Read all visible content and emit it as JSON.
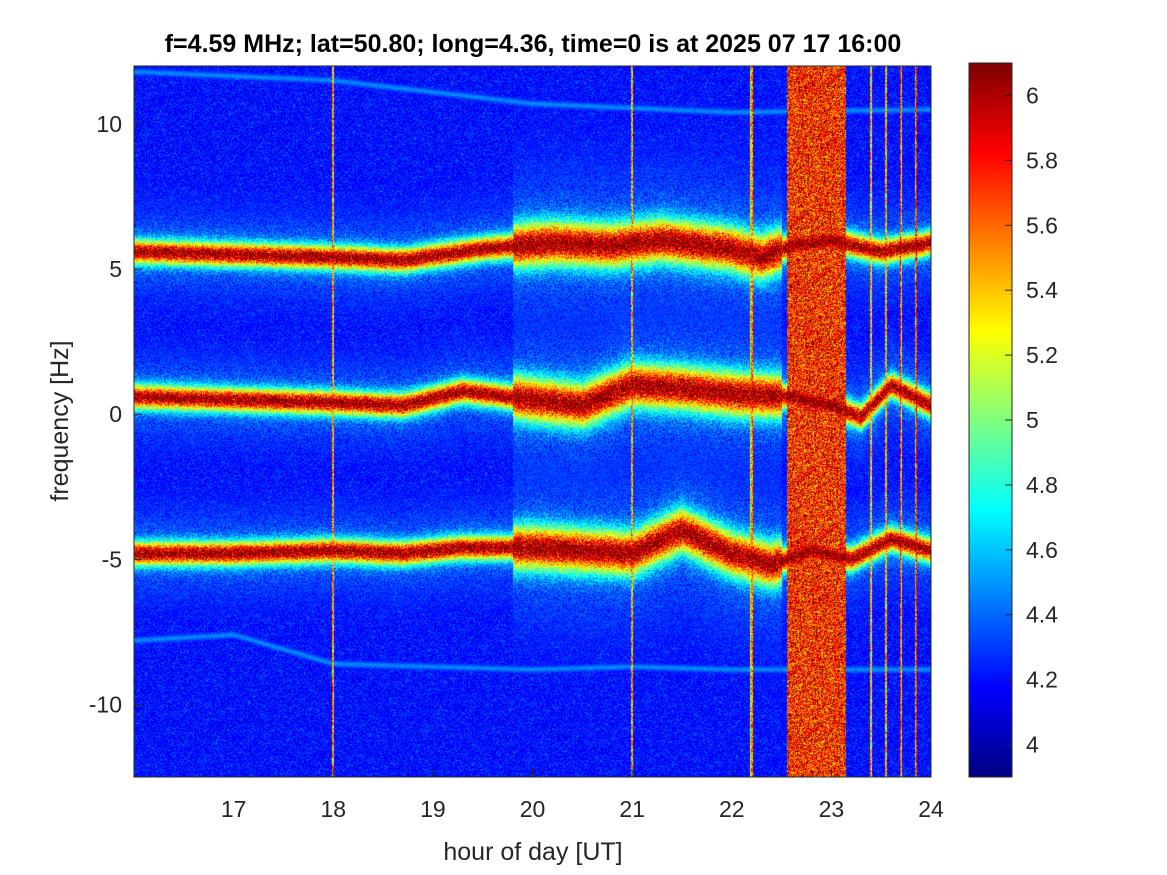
{
  "chart_data": {
    "type": "heatmap",
    "title": "f=4.59 MHz;  lat=50.80; long=4.36, time=0 is at 2025 07 17 16:00",
    "xlabel": "hour of day [UT]",
    "ylabel": "frequency [Hz]",
    "xlim": [
      16,
      24
    ],
    "ylim": [
      -12.5,
      12
    ],
    "x_ticks": [
      17,
      18,
      19,
      20,
      21,
      22,
      23,
      24
    ],
    "y_ticks": [
      -10,
      -5,
      0,
      5,
      10
    ],
    "y_tick_labels": [
      "-10",
      "-5",
      "0",
      "5",
      "10"
    ],
    "colorbar": {
      "colormap": "jet",
      "clim": [
        3.9,
        6.1
      ],
      "ticks": [
        4,
        4.2,
        4.4,
        4.6,
        4.8,
        5,
        5.2,
        5.4,
        5.6,
        5.8,
        6
      ],
      "tick_labels": [
        "4",
        "4.2",
        "4.4",
        "4.6",
        "4.8",
        "5",
        "5.2",
        "5.4",
        "5.6",
        "5.8",
        "6"
      ]
    },
    "background_level": 4.15,
    "traces": [
      {
        "center_hz": 5.6,
        "points": [
          [
            16,
            5.6
          ],
          [
            17,
            5.5
          ],
          [
            18,
            5.4
          ],
          [
            18.7,
            5.3
          ],
          [
            19.5,
            5.7
          ],
          [
            20.2,
            5.9
          ],
          [
            20.8,
            5.8
          ],
          [
            21.3,
            6.0
          ],
          [
            22.0,
            5.7
          ],
          [
            22.3,
            5.4
          ],
          [
            22.6,
            5.8
          ],
          [
            23.0,
            6.0
          ],
          [
            23.5,
            5.6
          ],
          [
            24,
            5.9
          ]
        ],
        "peak_level": 6.0
      },
      {
        "center_hz": 0.6,
        "points": [
          [
            16,
            0.6
          ],
          [
            17,
            0.5
          ],
          [
            18,
            0.4
          ],
          [
            18.7,
            0.3
          ],
          [
            19.3,
            0.8
          ],
          [
            20.0,
            0.5
          ],
          [
            20.5,
            0.3
          ],
          [
            21.0,
            1.0
          ],
          [
            21.5,
            0.9
          ],
          [
            22.0,
            0.7
          ],
          [
            22.6,
            0.6
          ],
          [
            23.0,
            0.3
          ],
          [
            23.3,
            -0.1
          ],
          [
            23.6,
            1.0
          ],
          [
            24,
            0.3
          ]
        ],
        "peak_level": 6.0
      },
      {
        "center_hz": -4.8,
        "points": [
          [
            16,
            -4.8
          ],
          [
            17,
            -4.8
          ],
          [
            18,
            -4.7
          ],
          [
            18.7,
            -4.8
          ],
          [
            19.3,
            -4.6
          ],
          [
            20.0,
            -4.6
          ],
          [
            20.5,
            -4.7
          ],
          [
            21.0,
            -4.8
          ],
          [
            21.5,
            -4.0
          ],
          [
            22.0,
            -4.8
          ],
          [
            22.4,
            -5.2
          ],
          [
            22.8,
            -4.7
          ],
          [
            23.2,
            -5.0
          ],
          [
            23.6,
            -4.3
          ],
          [
            24,
            -4.7
          ]
        ],
        "peak_level": 6.0
      },
      {
        "center_hz": 11.6,
        "points": [
          [
            16,
            11.8
          ],
          [
            18,
            11.5
          ],
          [
            20,
            10.7
          ],
          [
            22,
            10.4
          ],
          [
            24,
            10.5
          ]
        ],
        "peak_level": 4.5
      },
      {
        "center_hz": -7.6,
        "points": [
          [
            16,
            -7.8
          ],
          [
            17,
            -7.6
          ],
          [
            18,
            -8.6
          ],
          [
            20,
            -8.8
          ],
          [
            21,
            -8.7
          ],
          [
            22,
            -8.8
          ]
        ],
        "peak_level": 4.5
      }
    ],
    "broadband_interference": {
      "hour_start": 22.55,
      "hour_end": 23.15,
      "level": 5.85
    },
    "vertical_spikes_hours": [
      18.0,
      21.0,
      22.2,
      23.4,
      23.55,
      23.7,
      23.85
    ]
  }
}
